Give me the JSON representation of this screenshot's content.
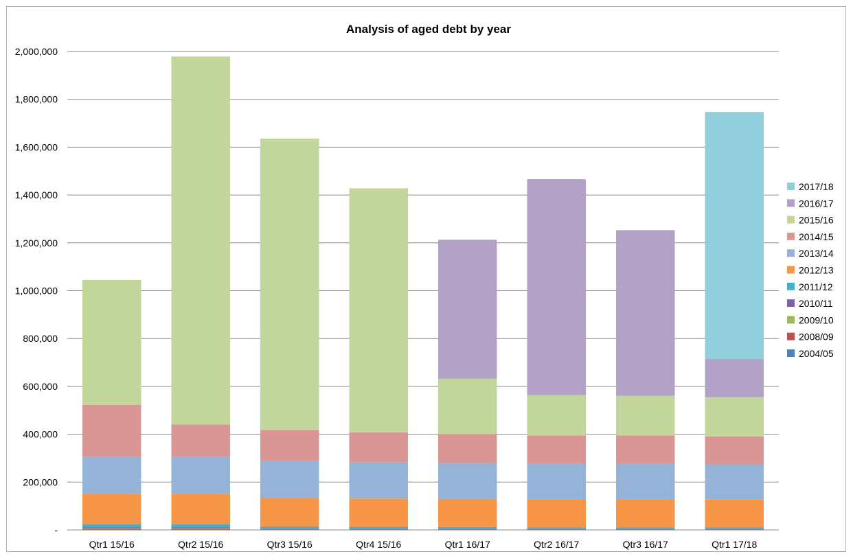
{
  "chart_data": {
    "type": "bar",
    "stacked": true,
    "title": "Analysis of aged  debt  by year",
    "xlabel": "",
    "ylabel": "",
    "ylim": [
      0,
      2000000
    ],
    "yticks": [
      0,
      200000,
      400000,
      600000,
      800000,
      1000000,
      1200000,
      1400000,
      1600000,
      1800000,
      2000000
    ],
    "ytick_labels": [
      "-",
      "200,000",
      "400,000",
      "600,000",
      "800,000",
      "1,000,000",
      "1,200,000",
      "1,400,000",
      "1,600,000",
      "1,800,000",
      "2,000,000"
    ],
    "grid": true,
    "legend_position": "right",
    "categories": [
      "Qtr1 15/16",
      "Qtr2 15/16",
      "Qtr3 15/16",
      "Qtr4 15/16",
      "Qtr1 16/17",
      "Qtr2 16/17",
      "Qtr3 16/17",
      "Qtr1 17/18"
    ],
    "series": [
      {
        "name": "2004/05",
        "color": "#4f81bd",
        "values": [
          3000,
          3000,
          2000,
          2000,
          2000,
          2000,
          2000,
          2000
        ]
      },
      {
        "name": "2008/09",
        "color": "#c0504d",
        "values": [
          2000,
          2000,
          1000,
          1000,
          1000,
          1000,
          1000,
          1000
        ]
      },
      {
        "name": "2009/10",
        "color": "#9bbb59",
        "values": [
          2000,
          2000,
          1000,
          1000,
          1000,
          1000,
          1000,
          1000
        ]
      },
      {
        "name": "2010/11",
        "color": "#8064a2",
        "values": [
          3000,
          3000,
          2000,
          2000,
          2000,
          2000,
          2000,
          2000
        ]
      },
      {
        "name": "2011/12",
        "color": "#4bacc6",
        "values": [
          15000,
          15000,
          9000,
          7000,
          6000,
          5000,
          5000,
          5000
        ]
      },
      {
        "name": "2012/13",
        "color": "#f79646",
        "values": [
          125000,
          125000,
          120000,
          118000,
          118000,
          117000,
          117000,
          116000
        ]
      },
      {
        "name": "2013/14",
        "color": "#95b3d7",
        "values": [
          155000,
          155000,
          155000,
          152000,
          150000,
          149000,
          149000,
          147000
        ]
      },
      {
        "name": "2014/15",
        "color": "#d99694",
        "values": [
          218000,
          136000,
          128000,
          125000,
          120000,
          118000,
          118000,
          117000
        ]
      },
      {
        "name": "2015/16",
        "color": "#c3d69b",
        "values": [
          522000,
          1538000,
          1218000,
          1020000,
          232000,
          168000,
          166000,
          164000
        ]
      },
      {
        "name": "2016/17",
        "color": "#b2a2c7",
        "values": [
          0,
          0,
          0,
          0,
          581000,
          903000,
          692000,
          160000
        ]
      },
      {
        "name": "2017/18",
        "color": "#92cddc",
        "values": [
          0,
          0,
          0,
          0,
          0,
          0,
          0,
          1032000
        ]
      }
    ]
  }
}
